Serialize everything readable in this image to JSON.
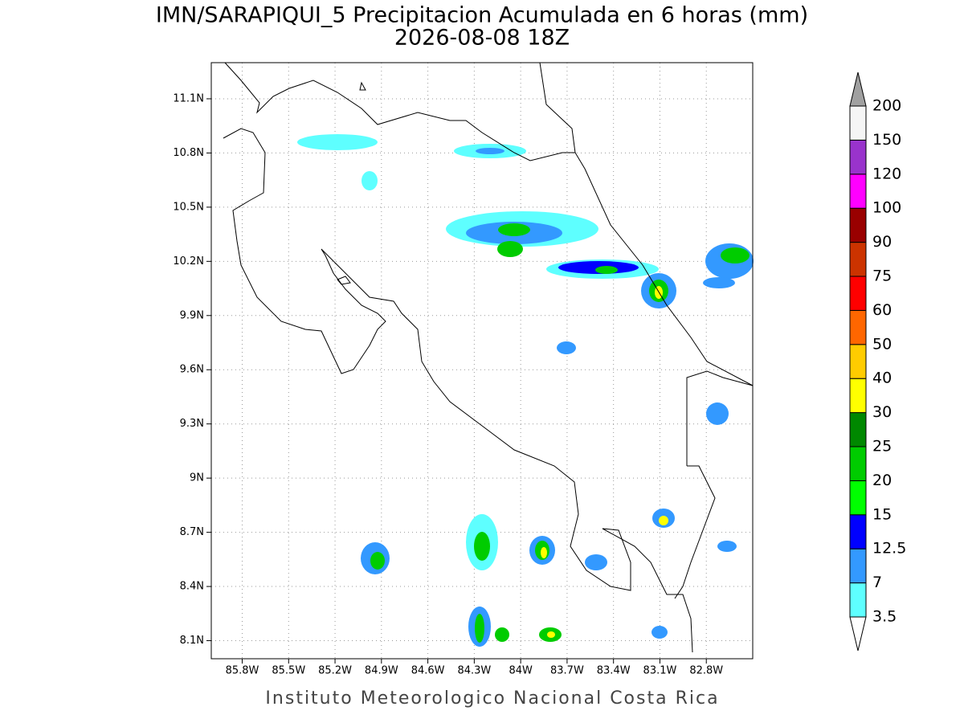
{
  "chart_data": {
    "type": "map",
    "title": "IMN/SARAPIQUI_5 Precipitacion Acumulada en 6 horas (mm)",
    "subtitle": "2026-08-08 18Z",
    "xlim": [
      -86.0,
      -82.5
    ],
    "ylim": [
      8.0,
      11.3
    ],
    "xticks": [
      {
        "value": -85.8,
        "label": "85.8W"
      },
      {
        "value": -85.5,
        "label": "85.5W"
      },
      {
        "value": -85.2,
        "label": "85.2W"
      },
      {
        "value": -84.9,
        "label": "84.9W"
      },
      {
        "value": -84.6,
        "label": "84.6W"
      },
      {
        "value": -84.3,
        "label": "84.3W"
      },
      {
        "value": -84.0,
        "label": "84W"
      },
      {
        "value": -83.7,
        "label": "83.7W"
      },
      {
        "value": -83.4,
        "label": "83.4W"
      },
      {
        "value": -83.1,
        "label": "83.1W"
      },
      {
        "value": -82.8,
        "label": "82.8W"
      }
    ],
    "yticks": [
      {
        "value": 8.1,
        "label": "8.1N"
      },
      {
        "value": 8.4,
        "label": "8.4N"
      },
      {
        "value": 8.7,
        "label": "8.7N"
      },
      {
        "value": 9.0,
        "label": "9N"
      },
      {
        "value": 9.3,
        "label": "9.3N"
      },
      {
        "value": 9.6,
        "label": "9.6N"
      },
      {
        "value": 9.9,
        "label": "9.9N"
      },
      {
        "value": 10.2,
        "label": "10.2N"
      },
      {
        "value": 10.5,
        "label": "10.5N"
      },
      {
        "value": 10.8,
        "label": "10.8N"
      },
      {
        "value": 11.1,
        "label": "11.1N"
      }
    ],
    "grid": true,
    "colorbar": {
      "levels": [
        3.5,
        7,
        12.5,
        15,
        20,
        25,
        30,
        40,
        50,
        60,
        75,
        90,
        100,
        120,
        150,
        200
      ],
      "colors": [
        "#ffffff",
        "#5effff",
        "#3399ff",
        "#0000ff",
        "#00ff00",
        "#00cc00",
        "#008800",
        "#ffff00",
        "#ffcc00",
        "#ff6600",
        "#ff0000",
        "#cc3300",
        "#990000",
        "#ff00ff",
        "#9933cc",
        "#f5f5f5",
        "#a0a0a0"
      ]
    },
    "credit": "Instituto Meteorologico Nacional Costa Rica"
  }
}
